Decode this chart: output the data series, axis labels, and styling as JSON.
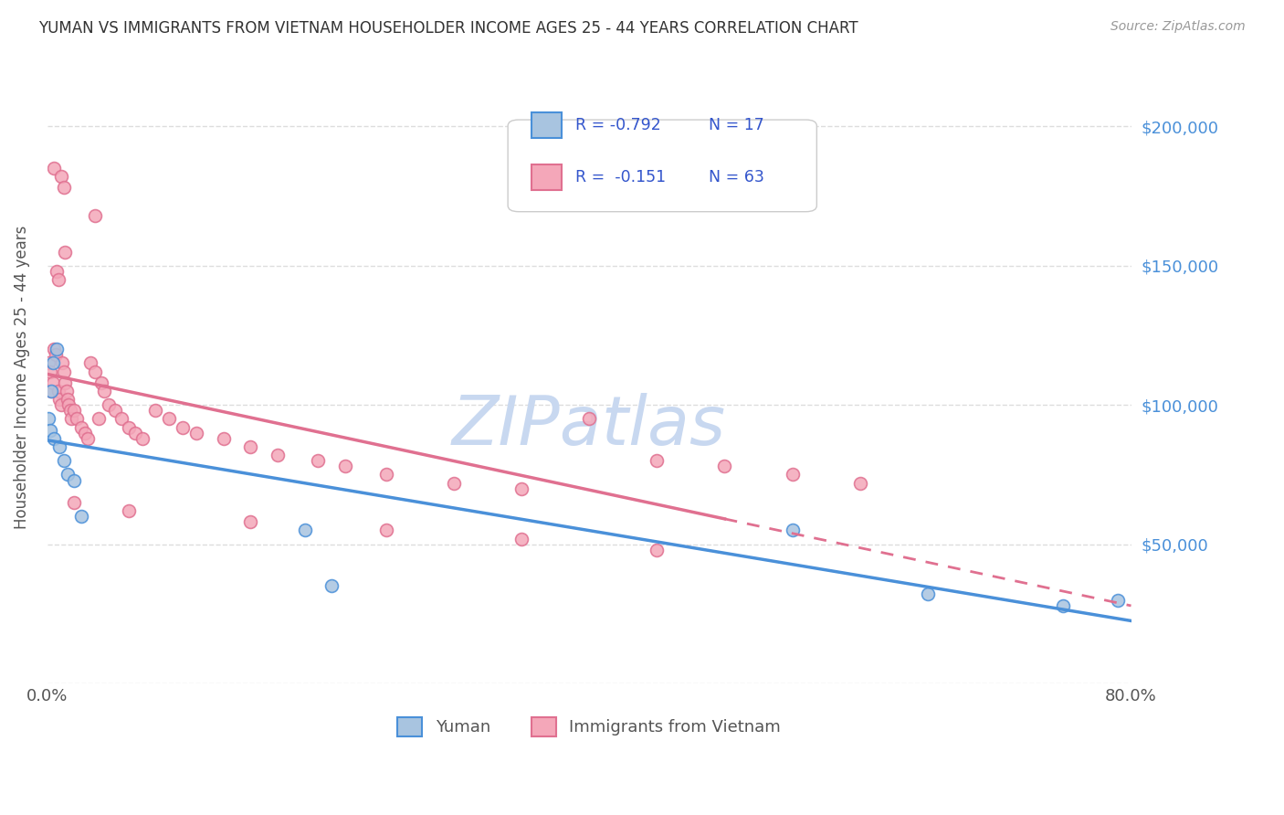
{
  "title": "YUMAN VS IMMIGRANTS FROM VIETNAM HOUSEHOLDER INCOME AGES 25 - 44 YEARS CORRELATION CHART",
  "source_text": "Source: ZipAtlas.com",
  "ylabel": "Householder Income Ages 25 - 44 years",
  "x_min": 0.0,
  "x_max": 0.8,
  "y_min": 0,
  "y_max": 220000,
  "y_tick_pos": [
    0,
    50000,
    100000,
    150000,
    200000
  ],
  "y_tick_labels_right": [
    "",
    "$50,000",
    "$100,000",
    "$150,000",
    "$200,000"
  ],
  "x_tick_pos": [
    0.0,
    0.1,
    0.2,
    0.3,
    0.4,
    0.5,
    0.6,
    0.7,
    0.8
  ],
  "x_tick_labels": [
    "0.0%",
    "",
    "",
    "",
    "",
    "",
    "",
    "",
    "80.0%"
  ],
  "legend_r1": "-0.792",
  "legend_n1": "17",
  "legend_r2": "-0.151",
  "legend_n2": "63",
  "color_yuman_fill": "#a8c4e0",
  "color_yuman_edge": "#4a90d9",
  "color_vietnam_fill": "#f4a7b9",
  "color_vietnam_edge": "#e07090",
  "watermark_color": "#c8d8f0",
  "yuman_x": [
    0.001,
    0.002,
    0.003,
    0.004,
    0.005,
    0.007,
    0.009,
    0.012,
    0.015,
    0.02,
    0.025,
    0.19,
    0.21,
    0.55,
    0.65,
    0.75,
    0.79
  ],
  "yuman_y": [
    95000,
    91000,
    105000,
    115000,
    88000,
    120000,
    85000,
    80000,
    75000,
    73000,
    60000,
    55000,
    35000,
    55000,
    32000,
    28000,
    30000
  ],
  "vietnam_x": [
    0.005,
    0.01,
    0.012,
    0.035,
    0.007,
    0.008,
    0.013,
    0.001,
    0.002,
    0.003,
    0.004,
    0.005,
    0.006,
    0.008,
    0.009,
    0.01,
    0.011,
    0.012,
    0.013,
    0.014,
    0.015,
    0.016,
    0.017,
    0.018,
    0.02,
    0.022,
    0.025,
    0.028,
    0.03,
    0.032,
    0.035,
    0.038,
    0.04,
    0.042,
    0.045,
    0.05,
    0.055,
    0.06,
    0.065,
    0.07,
    0.08,
    0.09,
    0.1,
    0.11,
    0.13,
    0.15,
    0.17,
    0.2,
    0.22,
    0.25,
    0.3,
    0.35,
    0.4,
    0.45,
    0.5,
    0.55,
    0.6,
    0.02,
    0.06,
    0.15,
    0.25,
    0.35,
    0.45
  ],
  "vietnam_y": [
    185000,
    182000,
    178000,
    168000,
    148000,
    145000,
    155000,
    115000,
    112000,
    105000,
    108000,
    120000,
    118000,
    105000,
    102000,
    100000,
    115000,
    112000,
    108000,
    105000,
    102000,
    100000,
    98000,
    95000,
    98000,
    95000,
    92000,
    90000,
    88000,
    115000,
    112000,
    95000,
    108000,
    105000,
    100000,
    98000,
    95000,
    92000,
    90000,
    88000,
    98000,
    95000,
    92000,
    90000,
    88000,
    85000,
    82000,
    80000,
    78000,
    75000,
    72000,
    70000,
    95000,
    80000,
    78000,
    75000,
    72000,
    65000,
    62000,
    58000,
    55000,
    52000,
    48000
  ]
}
